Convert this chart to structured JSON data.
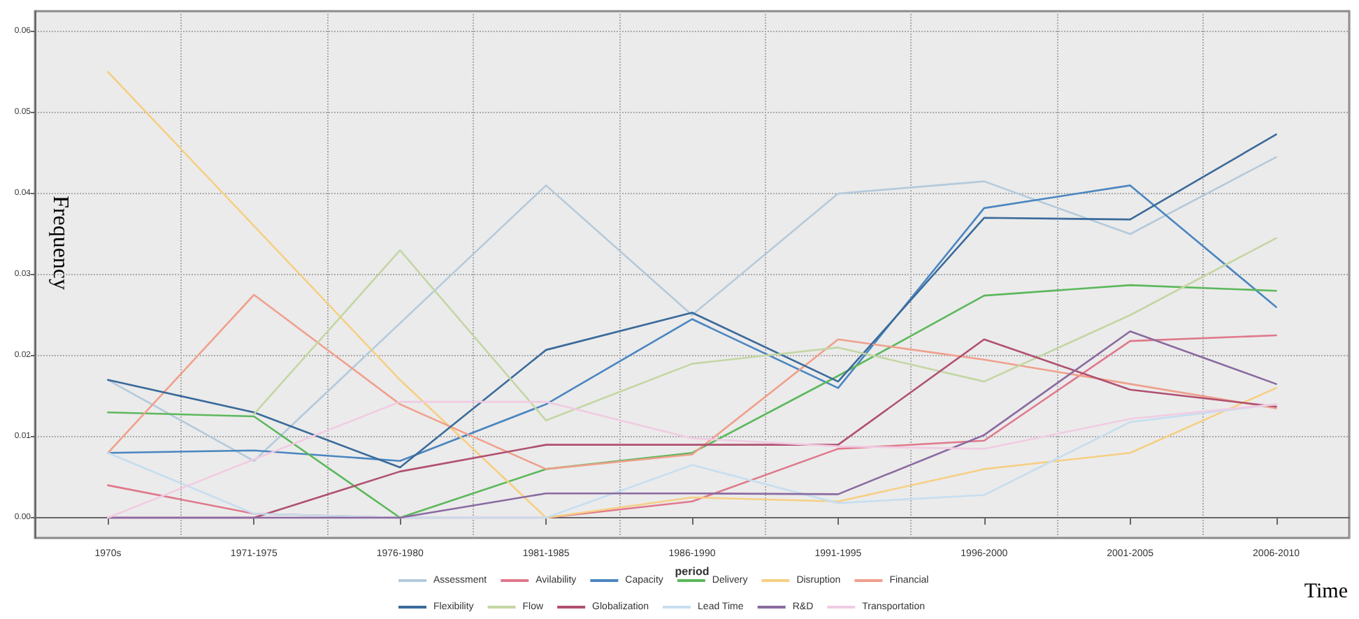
{
  "chart_data": {
    "type": "line",
    "xlabel": "period",
    "ylabel": "Frequency",
    "annotations": [
      "Time"
    ],
    "categories": [
      "1970s",
      "1971-1975",
      "1976-1980",
      "1981-1985",
      "1986-1990",
      "1991-1995",
      "1996-2000",
      "2001-2005",
      "2006-2010"
    ],
    "ylim": [
      -0.0025,
      0.0625
    ],
    "yticks": [
      {
        "value": 0,
        "label": "0.00"
      },
      {
        "value": 0.01,
        "label": "0.01"
      },
      {
        "value": 0.02,
        "label": "0.02"
      },
      {
        "value": 0.03,
        "label": "0.03"
      },
      {
        "value": 0.04,
        "label": "0.04"
      },
      {
        "value": 0.05,
        "label": "0.05"
      },
      {
        "value": 0.06,
        "label": "0.06"
      }
    ],
    "grid": true,
    "legend": "bottom",
    "marker": "none",
    "line_style": "solid",
    "series": [
      {
        "name": "Assessment",
        "color": "#b4cadc",
        "values": [
          0.017,
          0.007,
          0.024,
          0.041,
          0.025,
          0.04,
          0.0415,
          0.035,
          0.0445
        ]
      },
      {
        "name": "Avilability",
        "color": "#e0788c",
        "values": [
          0.004,
          0.0005,
          0,
          0,
          0.002,
          0.0085,
          0.0095,
          0.0218,
          0.0225
        ]
      },
      {
        "name": "Capacity",
        "color": "#4a86c0",
        "values": [
          0.008,
          0.0083,
          0.007,
          0.014,
          0.0245,
          0.016,
          0.0382,
          0.041,
          0.026
        ]
      },
      {
        "name": "Delivery",
        "color": "#5cb85c",
        "values": [
          0.013,
          0.0125,
          0,
          0.006,
          0.008,
          0.0175,
          0.0274,
          0.0287,
          0.028
        ]
      },
      {
        "name": "Disruption",
        "color": "#f6cf84",
        "values": [
          0.055,
          0.036,
          0.017,
          0,
          0.0025,
          0.002,
          0.006,
          0.008,
          0.016
        ]
      },
      {
        "name": "Financial",
        "color": "#f0a08c",
        "values": [
          0.008,
          0.0275,
          0.014,
          0.006,
          0.0078,
          0.022,
          0.0195,
          0.0165,
          0.0135
        ]
      },
      {
        "name": "Flexibility",
        "color": "#3a6a9a",
        "values": [
          0.017,
          0.013,
          0.0062,
          0.0207,
          0.0253,
          0.0168,
          0.037,
          0.0368,
          0.0473
        ]
      },
      {
        "name": "Flow",
        "color": "#c4d6a4",
        "values": [
          null,
          0.0128,
          0.033,
          0.012,
          0.019,
          0.021,
          0.0168,
          0.025,
          0.0345
        ]
      },
      {
        "name": "Globalization",
        "color": "#b05070",
        "values": [
          0,
          0,
          0.0057,
          0.009,
          0.009,
          0.009,
          0.022,
          0.0158,
          0.0137
        ]
      },
      {
        "name": "Lead Time",
        "color": "#c6def0",
        "values": [
          0.008,
          0.0005,
          0,
          0,
          0.0065,
          0.0018,
          0.0028,
          0.0118,
          0.014
        ]
      },
      {
        "name": "R&D",
        "color": "#8a6aa0",
        "values": [
          0,
          0,
          0,
          0.003,
          0.003,
          0.0029,
          0.0102,
          0.023,
          0.0165
        ]
      },
      {
        "name": "Transportation",
        "color": "#f0cce2",
        "values": [
          0,
          0.0072,
          0.0143,
          0.0143,
          0.0098,
          0.0088,
          0.0085,
          0.0122,
          0.014
        ]
      }
    ]
  }
}
